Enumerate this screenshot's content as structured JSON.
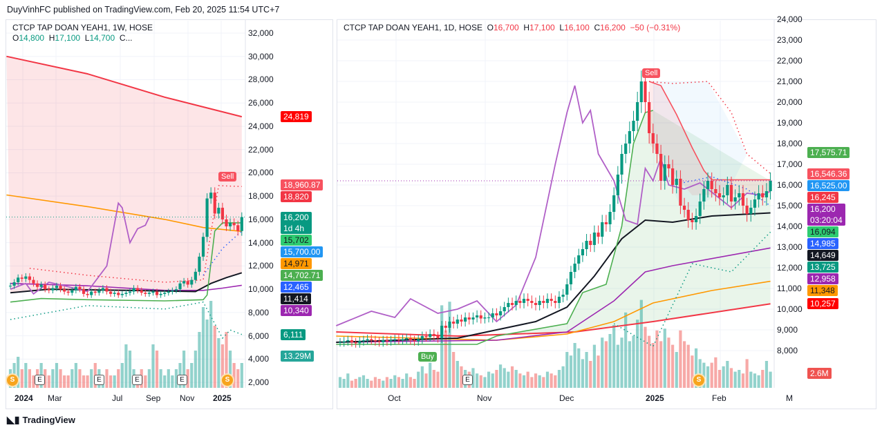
{
  "publisher_line": "DuyVinhFC published on TradingView.com, Feb 20, 2025 11:54 UTC+7",
  "footer_logo": "TradingView",
  "left": {
    "legend": {
      "name": "CTCP TAP DOAN YEAH1, 1W, HOSE",
      "o_label": "O",
      "o": "14,800",
      "h_label": "H",
      "h": "17,100",
      "l_label": "L",
      "l": "14,700",
      "more": "C..."
    },
    "price_ticks": [
      "32,000",
      "30,000",
      "28,000",
      "26,000",
      "24,000",
      "22,000",
      "20,000",
      "18,000",
      "16,000",
      "14,000",
      "12,000",
      "10,000",
      "8,000",
      "6,000",
      "4,000",
      "2,000"
    ],
    "time_labels": [
      {
        "t": "2024",
        "bold": true
      },
      {
        "t": "Mar"
      },
      {
        "t": "Jul"
      },
      {
        "t": "Sep"
      },
      {
        "t": "Nov"
      },
      {
        "t": "2025",
        "bold": true
      }
    ],
    "badges": [
      {
        "text": "24,819",
        "color": "#ff0000",
        "value": 24819
      },
      {
        "text": "18,960.87",
        "color": "#f7525f",
        "value": 18960.87
      },
      {
        "text": "18,820",
        "color": "#f23645",
        "value": 18820
      },
      {
        "text": "16,200",
        "sub": "1d 4h",
        "color": "#089981",
        "value": 16200
      },
      {
        "text": "15,702",
        "color": "#2ecc71",
        "dark": true,
        "value": 15702
      },
      {
        "text": "15,700.00",
        "color": "#2196f3",
        "value": 15700
      },
      {
        "text": "14,971",
        "color": "#ff9800",
        "dark": true,
        "value": 14971
      },
      {
        "text": "14,702.71",
        "color": "#4caf50",
        "value": 14702.71
      },
      {
        "text": "12,465",
        "color": "#2962ff",
        "value": 12465
      },
      {
        "text": "11,414",
        "color": "#131722",
        "value": 11414
      },
      {
        "text": "10,340",
        "color": "#9c27b0",
        "value": 10340
      },
      {
        "text": "6,111",
        "color": "#089981",
        "value": 6111
      },
      {
        "text": "13.29M",
        "color": "#26a69a",
        "volume": true
      }
    ],
    "markers": {
      "sell": "Sell",
      "earnings": "E",
      "dividend": "S"
    }
  },
  "right": {
    "legend": {
      "name": "CTCP TAP DOAN YEAH1, 1D, HOSE",
      "o_label": "O",
      "o": "16,700",
      "h_label": "H",
      "h": "17,100",
      "l_label": "L",
      "l": "16,100",
      "c_label": "C",
      "c": "16,200",
      "chg": "−50 (−0.31%)"
    },
    "price_ticks": [
      "24,000",
      "23,000",
      "22,000",
      "21,000",
      "20,000",
      "19,000",
      "18,000",
      "17,000",
      "16,000",
      "15,000",
      "14,000",
      "13,000",
      "12,000",
      "11,000",
      "10,000",
      "9,000",
      "8,000"
    ],
    "time_labels": [
      {
        "t": "Oct"
      },
      {
        "t": "Nov"
      },
      {
        "t": "Dec"
      },
      {
        "t": "2025",
        "bold": true
      },
      {
        "t": "Feb"
      },
      {
        "t": "M"
      }
    ],
    "badges": [
      {
        "text": "17,575.71",
        "color": "#4caf50",
        "value": 17575.71
      },
      {
        "text": "16,546.36",
        "color": "#f7525f",
        "value": 16546.36
      },
      {
        "text": "16,525.00",
        "color": "#2196f3",
        "value": 16525
      },
      {
        "text": "16,245",
        "color": "#f23645",
        "value": 16245
      },
      {
        "text": "16,200",
        "sub": "03:20:04",
        "color": "#9c27b0",
        "value": 16200
      },
      {
        "text": "16,094",
        "color": "#2ecc71",
        "dark": true,
        "value": 16094
      },
      {
        "text": "14,985",
        "color": "#2962ff",
        "value": 14985
      },
      {
        "text": "14,649",
        "color": "#131722",
        "value": 14649
      },
      {
        "text": "13,725",
        "color": "#089981",
        "value": 13725
      },
      {
        "text": "12,958",
        "color": "#9c27b0",
        "value": 12958
      },
      {
        "text": "11,348",
        "color": "#ff9800",
        "dark": true,
        "value": 11348
      },
      {
        "text": "10,257",
        "color": "#ff0000",
        "value": 10257
      },
      {
        "text": "2.6M",
        "color": "#ef5350",
        "volume": true
      }
    ],
    "markers": {
      "buy": "Buy",
      "sell": "Sell",
      "earnings": "E",
      "dividend": "S"
    }
  },
  "chart_data": [
    {
      "type": "candlestick",
      "timeframe": "1W",
      "ylim": [
        2000,
        32000
      ],
      "closes": [
        10300,
        10600,
        11000,
        10900,
        11100,
        10800,
        10500,
        10200,
        10400,
        10000,
        9900,
        10100,
        10300,
        10000,
        9800,
        9700,
        9900,
        10200,
        10000,
        9600,
        9500,
        9800,
        9700,
        9900,
        10100,
        9800,
        9600,
        9700,
        9500,
        9600,
        9700,
        9800,
        10100,
        9900,
        9700,
        9600,
        9700,
        9800,
        9500,
        9600,
        9700,
        9800,
        9900,
        10000,
        10500,
        10700,
        10400,
        10800,
        11500,
        12800,
        14500,
        17800,
        18300,
        16500,
        17000,
        16000,
        15400,
        15700,
        15500,
        15000,
        16200
      ],
      "volumes_m": [
        3,
        4,
        5,
        3,
        4,
        3,
        2,
        3,
        4,
        3,
        2,
        3,
        4,
        3,
        2,
        2,
        3,
        4,
        3,
        2,
        2,
        3,
        4,
        3,
        2,
        3,
        2,
        2,
        3,
        4,
        7,
        6,
        3,
        2,
        3,
        2,
        3,
        7,
        6,
        3,
        2,
        3,
        2,
        3,
        4,
        6,
        3,
        4,
        6,
        9,
        13,
        11,
        14,
        10,
        8,
        7,
        9,
        6,
        4,
        3,
        4
      ],
      "indicators": {
        "red_ma": [
          [
            -1,
            30000
          ],
          [
            20,
            28500
          ],
          [
            40,
            26500
          ],
          [
            60,
            24819
          ]
        ],
        "orange_ma": [
          [
            -1,
            18100
          ],
          [
            20,
            17100
          ],
          [
            40,
            16000
          ],
          [
            50,
            15300
          ],
          [
            60,
            14971
          ]
        ],
        "black_ema": [
          [
            0,
            9700
          ],
          [
            10,
            10000
          ],
          [
            30,
            9900
          ],
          [
            48,
            9800
          ],
          [
            52,
            10500
          ],
          [
            56,
            11000
          ],
          [
            60,
            11414
          ]
        ],
        "purple_ma": [
          [
            0,
            10500
          ],
          [
            20,
            10300
          ],
          [
            40,
            9900
          ],
          [
            50,
            9900
          ],
          [
            55,
            10100
          ],
          [
            60,
            10340
          ]
        ],
        "green_stop": [
          [
            0,
            8900
          ],
          [
            8,
            9200
          ],
          [
            20,
            9100
          ],
          [
            40,
            9000
          ],
          [
            50,
            9100
          ],
          [
            51,
            9500
          ],
          [
            53,
            15000
          ],
          [
            55,
            15702
          ],
          [
            60,
            15702
          ]
        ],
        "purple_osc": [
          [
            0,
            10000
          ],
          [
            4,
            10500
          ],
          [
            6,
            9600
          ],
          [
            10,
            10600
          ],
          [
            14,
            10300
          ],
          [
            20,
            9800
          ],
          [
            25,
            12000
          ],
          [
            28,
            17400
          ],
          [
            29,
            17000
          ],
          [
            31,
            14000
          ],
          [
            33,
            15200
          ],
          [
            35,
            15500
          ],
          [
            36,
            16200
          ]
        ],
        "sar_upper": [
          [
            5,
            11800
          ],
          [
            20,
            11200
          ],
          [
            40,
            10600
          ],
          [
            50,
            10800
          ],
          [
            54,
            18900
          ],
          [
            60,
            18820
          ]
        ],
        "sar_lower": [
          [
            0,
            7400
          ],
          [
            20,
            8600
          ],
          [
            40,
            8300
          ],
          [
            50,
            8900
          ],
          [
            55,
            5800
          ],
          [
            57,
            6500
          ],
          [
            60,
            6111
          ]
        ],
        "blue_dots": [
          [
            50,
            11200
          ],
          [
            55,
            13500
          ],
          [
            60,
            15000
          ]
        ]
      }
    },
    {
      "type": "candlestick",
      "timeframe": "1D",
      "ylim": [
        7500,
        24000
      ],
      "closes": [
        8400,
        8450,
        8500,
        8400,
        8350,
        8450,
        8500,
        8550,
        8500,
        8450,
        8400,
        8500,
        8450,
        8500,
        8550,
        8500,
        8550,
        8600,
        8500,
        8450,
        8550,
        8700,
        8650,
        8800,
        8700,
        8600,
        9200,
        9100,
        9400,
        9300,
        9500,
        9400,
        9600,
        9500,
        9600,
        9700,
        9550,
        9600,
        9600,
        9800,
        9700,
        9900,
        10100,
        10300,
        10200,
        10400,
        10300,
        10500,
        10400,
        10300,
        10200,
        10400,
        10300,
        10500,
        10400,
        10300,
        10600,
        10700,
        11200,
        11800,
        12200,
        12600,
        12900,
        13300,
        13100,
        13700,
        13500,
        14200,
        14100,
        14700,
        15500,
        16500,
        17500,
        18000,
        18600,
        19100,
        20000,
        21000,
        20000,
        18500,
        18000,
        17500,
        16200,
        17000,
        16800,
        16000,
        16300,
        15000,
        14800,
        14300,
        14200,
        14500,
        15200,
        15800,
        16200,
        15800,
        15600,
        15400,
        15500,
        16000,
        15200,
        15400,
        15600,
        15000,
        14600,
        14900,
        15300,
        15600,
        15400,
        15700,
        16200
      ],
      "volumes_m": [
        0.6,
        0.5,
        0.8,
        0.4,
        0.5,
        0.6,
        0.7,
        0.5,
        0.4,
        0.6,
        0.5,
        0.4,
        0.6,
        0.5,
        0.7,
        0.6,
        0.5,
        0.8,
        0.6,
        0.5,
        0.9,
        1.2,
        0.8,
        1.4,
        1.0,
        0.9,
        4.6,
        3.2,
        4.8,
        2.0,
        1.5,
        1.2,
        1.0,
        0.9,
        1.1,
        0.8,
        0.7,
        0.6,
        0.9,
        0.8,
        1.0,
        1.3,
        1.1,
        0.9,
        1.2,
        1.0,
        0.8,
        0.7,
        0.9,
        0.6,
        0.8,
        0.7,
        0.6,
        0.9,
        0.8,
        0.7,
        1.0,
        1.2,
        2.0,
        1.8,
        2.5,
        2.2,
        1.6,
        2.0,
        1.5,
        2.4,
        1.8,
        2.8,
        2.6,
        3.0,
        3.5,
        2.4,
        2.8,
        4.2,
        2.6,
        2.9,
        3.8,
        4.9,
        3.4,
        2.9,
        2.5,
        3.2,
        2.6,
        3.3,
        2.8,
        2.4,
        2.0,
        3.2,
        2.6,
        2.4,
        1.8,
        2.2,
        1.6,
        1.4,
        1.2,
        1.4,
        1.7,
        1.0,
        1.2,
        1.5,
        1.1,
        0.9,
        1.0,
        0.8,
        1.6,
        0.9,
        0.8,
        0.7,
        1.0,
        1.5,
        0.9
      ],
      "indicators": {
        "red_ma": [
          [
            -1,
            8900
          ],
          [
            30,
            8700
          ],
          [
            60,
            8900
          ],
          [
            80,
            9400
          ],
          [
            110,
            10257
          ]
        ],
        "orange_ma": [
          [
            -1,
            8700
          ],
          [
            40,
            8500
          ],
          [
            58,
            8800
          ],
          [
            70,
            9400
          ],
          [
            80,
            10300
          ],
          [
            95,
            10900
          ],
          [
            110,
            11348
          ]
        ],
        "purple_ma": [
          [
            -1,
            8400
          ],
          [
            40,
            8500
          ],
          [
            58,
            8900
          ],
          [
            70,
            10400
          ],
          [
            78,
            11800
          ],
          [
            85,
            12100
          ],
          [
            110,
            12958
          ]
        ],
        "black_ema": [
          [
            -1,
            8400
          ],
          [
            30,
            8600
          ],
          [
            50,
            9400
          ],
          [
            58,
            10100
          ],
          [
            65,
            11600
          ],
          [
            72,
            13400
          ],
          [
            78,
            14300
          ],
          [
            85,
            14200
          ],
          [
            95,
            14500
          ],
          [
            110,
            14649
          ]
        ],
        "green_stop": [
          [
            -1,
            8300
          ],
          [
            35,
            8300
          ],
          [
            40,
            8700
          ],
          [
            58,
            9300
          ],
          [
            62,
            10800
          ],
          [
            68,
            11200
          ],
          [
            72,
            14000
          ],
          [
            75,
            18000
          ],
          [
            78,
            19500
          ],
          [
            80,
            19600
          ]
        ],
        "red_stop": [
          [
            79,
            21000
          ],
          [
            82,
            20800
          ],
          [
            86,
            19400
          ],
          [
            90,
            17800
          ],
          [
            93,
            16700
          ],
          [
            95,
            16245
          ],
          [
            110,
            16245
          ]
        ],
        "purple_osc": [
          [
            -1,
            9200
          ],
          [
            8,
            9900
          ],
          [
            14,
            9600
          ],
          [
            18,
            10500
          ],
          [
            25,
            9800
          ],
          [
            30,
            10000
          ],
          [
            35,
            10400
          ],
          [
            40,
            9400
          ],
          [
            45,
            10200
          ],
          [
            50,
            12500
          ],
          [
            55,
            17000
          ],
          [
            58,
            19500
          ],
          [
            60,
            20800
          ],
          [
            62,
            19000
          ],
          [
            64,
            19600
          ],
          [
            66,
            17500
          ],
          [
            70,
            16200
          ],
          [
            73,
            14300
          ],
          [
            76,
            14100
          ],
          [
            78,
            16800
          ],
          [
            80,
            16200
          ],
          [
            82,
            17300
          ],
          [
            84,
            16000
          ],
          [
            88,
            15800
          ],
          [
            92,
            16100
          ],
          [
            96,
            15500
          ],
          [
            100,
            14900
          ],
          [
            104,
            15600
          ],
          [
            108,
            15500
          ],
          [
            110,
            15700
          ]
        ],
        "sar_upper": [
          [
            79,
            21000
          ],
          [
            85,
            20900
          ],
          [
            94,
            21000
          ],
          [
            100,
            19500
          ],
          [
            104,
            17500
          ],
          [
            110,
            16546
          ]
        ],
        "sar_lower": [
          [
            70,
            9300
          ],
          [
            80,
            8200
          ],
          [
            90,
            12200
          ],
          [
            100,
            11800
          ],
          [
            110,
            13725
          ]
        ],
        "blue_dots": [
          [
            85,
            16000
          ],
          [
            95,
            16400
          ],
          [
            104,
            15800
          ],
          [
            110,
            14985
          ]
        ]
      }
    }
  ]
}
